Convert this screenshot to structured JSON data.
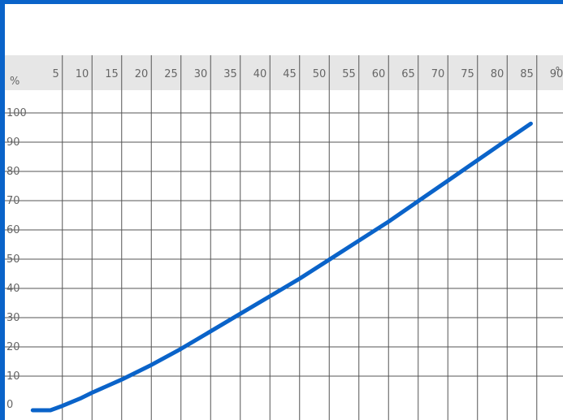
{
  "chart_data": {
    "type": "line",
    "title": "",
    "xlabel": "",
    "ylabel": "",
    "x_unit_symbol": "°",
    "y_unit_symbol": "%",
    "x_ticks": [
      5,
      10,
      15,
      20,
      25,
      30,
      35,
      40,
      45,
      50,
      55,
      60,
      65,
      70,
      75,
      80,
      85,
      90
    ],
    "y_ticks": [
      0,
      10,
      20,
      30,
      40,
      50,
      60,
      70,
      80,
      90,
      100
    ],
    "xlim": [
      0,
      92.5
    ],
    "ylim": [
      0,
      100
    ],
    "grid": true,
    "colors": {
      "line": "#0a63c9",
      "frame": "#0a63c9",
      "header": "#e6e6e6",
      "grid": "#555555"
    },
    "series": [
      {
        "points": [
          [
            0,
            0
          ],
          [
            3,
            0
          ],
          [
            5,
            1.5
          ],
          [
            8,
            4
          ],
          [
            10,
            6
          ],
          [
            15,
            10.5
          ],
          [
            20,
            15.5
          ],
          [
            25,
            21
          ],
          [
            30,
            27
          ],
          [
            35,
            33
          ],
          [
            40,
            39
          ],
          [
            45,
            45
          ],
          [
            50,
            51.5
          ],
          [
            55,
            58
          ],
          [
            60,
            64.5
          ],
          [
            65,
            71.5
          ],
          [
            70,
            78.5
          ],
          [
            75,
            85.5
          ],
          [
            80,
            92.5
          ],
          [
            84,
            98
          ]
        ]
      }
    ]
  }
}
